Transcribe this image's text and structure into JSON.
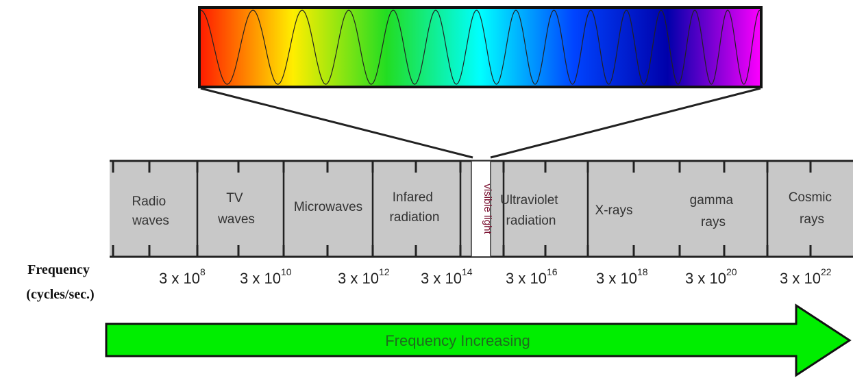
{
  "spectrum": {
    "colors": [
      "#ff1a00",
      "#ffee00",
      "#22dd22",
      "#00ffff",
      "#0044ff",
      "#0000aa",
      "#ff00ff"
    ],
    "wave_periods": 14
  },
  "bands": [
    {
      "lines": [
        "Radio",
        "waves"
      ]
    },
    {
      "lines": [
        "TV",
        "waves"
      ]
    },
    {
      "lines": [
        "Microwaves"
      ]
    },
    {
      "lines": [
        "Infared",
        "radiation"
      ]
    },
    {
      "lines": [
        "visible light"
      ]
    },
    {
      "lines": [
        "Ultraviolet",
        "radiation"
      ]
    },
    {
      "lines": [
        "X-rays"
      ]
    },
    {
      "lines": [
        "gamma",
        "rays"
      ]
    },
    {
      "lines": [
        "Cosmic",
        "rays"
      ]
    }
  ],
  "frequency": {
    "label_line1": "Frequency",
    "label_line2": "(cycles/sec.)",
    "values": [
      {
        "base": "3 x 10",
        "exponent": "8"
      },
      {
        "base": "3 x 10",
        "exponent": "10"
      },
      {
        "base": "3 x 10",
        "exponent": "12"
      },
      {
        "base": "3 x 10",
        "exponent": "14"
      },
      {
        "base": "3 x 10",
        "exponent": "16"
      },
      {
        "base": "3 x 10",
        "exponent": "18"
      },
      {
        "base": "3 x 10",
        "exponent": "20"
      },
      {
        "base": "3 x 10",
        "exponent": "22"
      }
    ]
  },
  "arrow": {
    "label": "Frequency Increasing",
    "color": "#00ee00"
  },
  "band_color": "#c8c8c8"
}
